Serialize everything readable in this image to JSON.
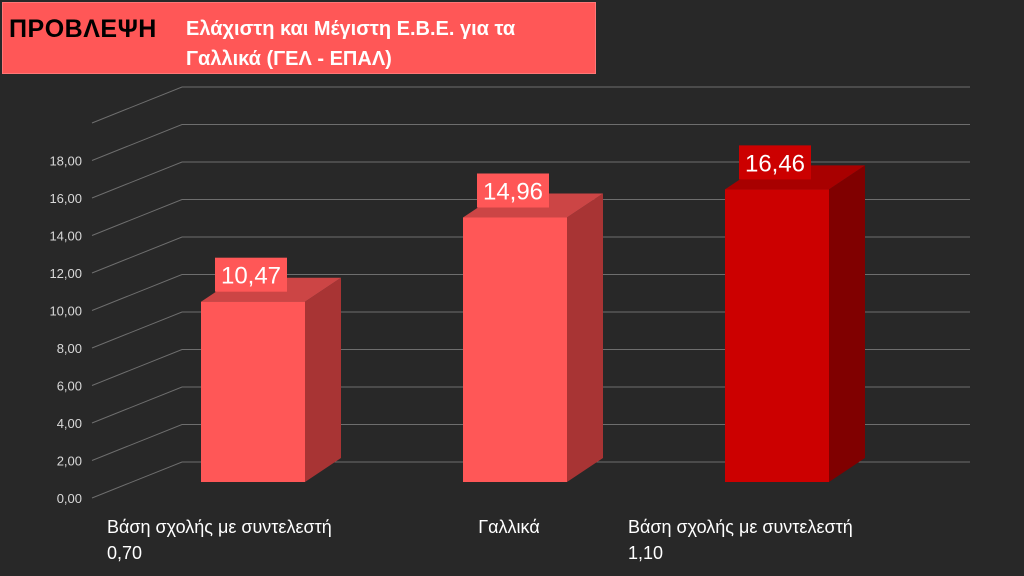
{
  "title": {
    "bold": "ΠΡΟΒΛΕΨΗ",
    "line1": "Ελάχιστη και Μέγιστη Ε.Β.Ε. για τα",
    "line2": "Γαλλικά (ΓΕΛ - ΕΠΑΛ)"
  },
  "chart_data": {
    "type": "bar",
    "style": "3d-column",
    "categories": [
      [
        "Βάση σχολής με συντελεστή",
        "0,70"
      ],
      [
        "Γαλλικά"
      ],
      [
        "Βάση σχολής με συντελεστή",
        "1,10"
      ]
    ],
    "values": [
      10.47,
      14.96,
      16.46
    ],
    "value_labels": [
      "10,47",
      "14,96",
      "16,46"
    ],
    "ylim": [
      0,
      20
    ],
    "yticks": [
      0,
      2,
      4,
      6,
      8,
      10,
      12,
      14,
      16,
      18
    ],
    "ytick_labels": [
      "0,00",
      "2,00",
      "4,00",
      "6,00",
      "8,00",
      "10,00",
      "12,00",
      "14,00",
      "16,00",
      "18,00"
    ],
    "grid": true,
    "bar_colors": [
      {
        "front": "#ff5757",
        "side": "#a83434",
        "top": "#cc4545",
        "label_bg": "#ff5757"
      },
      {
        "front": "#ff5757",
        "side": "#a83434",
        "top": "#cc4545",
        "label_bg": "#ff5757"
      },
      {
        "front": "#cc0000",
        "side": "#800000",
        "top": "#a80000",
        "label_bg": "#cc0000"
      }
    ],
    "background": "#282828",
    "grid_color": "#6e6e6e",
    "text_color": "#ffffff",
    "tick_text_color": "#d9d9d9"
  }
}
